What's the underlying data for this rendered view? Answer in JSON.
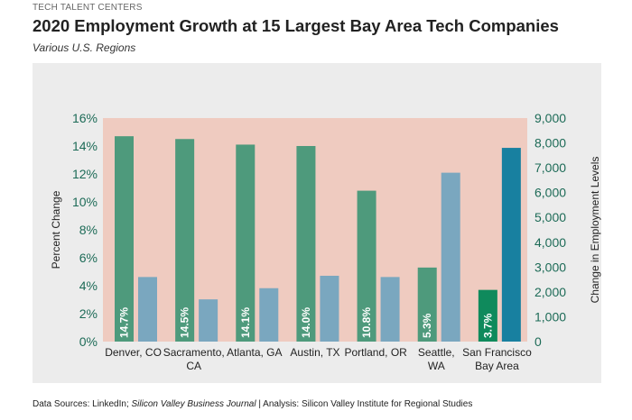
{
  "header": {
    "supertitle": "TECH TALENT CENTERS",
    "title": "2020 Employment Growth at 15 Largest Bay Area Tech Companies",
    "subtitle": "Various U.S. Regions"
  },
  "footer": {
    "prefix": "Data Sources: LinkedIn; ",
    "journal": "Silicon Valley Business Journal",
    "suffix": " | Analysis: Silicon Valley Institute for Regional Studies"
  },
  "colors": {
    "plot_bg": "#efcbc0",
    "panel_bg": "#ececec",
    "percent_bar": "#4e9a7c",
    "count_bar": "#7aa7bf",
    "sf_percent_bar": "#0f8a5c",
    "sf_count_bar": "#1880a0",
    "axis_text": "#1d6b57"
  },
  "chart_data": {
    "type": "bar",
    "title": "2020 Employment Growth at 15 Largest Bay Area Tech Companies",
    "subtitle": "Various U.S. Regions",
    "categories": [
      [
        "Denver, CO"
      ],
      [
        "Sacramento,",
        "CA"
      ],
      [
        "Atlanta, GA"
      ],
      [
        "Austin, TX"
      ],
      [
        "Portland, OR"
      ],
      [
        "Seattle,",
        "WA"
      ],
      [
        "San Francisco",
        "Bay Area"
      ]
    ],
    "series": [
      {
        "name": "Percent Change",
        "axis": "left",
        "values": [
          14.7,
          14.5,
          14.1,
          14.0,
          10.8,
          5.3,
          3.7
        ],
        "labels": [
          "14.7%",
          "14.5%",
          "14.1%",
          "14.0%",
          "10.8%",
          "5.3%",
          "3.7%"
        ]
      },
      {
        "name": "Change in Employment Levels",
        "axis": "right",
        "values": [
          2600,
          1700,
          2150,
          2650,
          2600,
          6800,
          7800
        ]
      }
    ],
    "ylabel": "Percent Change",
    "ylim": [
      0,
      16
    ],
    "yticks": [
      "0%",
      "2%",
      "4%",
      "6%",
      "8%",
      "10%",
      "12%",
      "14%",
      "16%"
    ],
    "y2label": "Change in Employment Levels",
    "y2lim": [
      0,
      9000
    ],
    "y2ticks": [
      "0",
      "1,000",
      "2,000",
      "3,000",
      "4,000",
      "5,000",
      "6,000",
      "7,000",
      "8,000",
      "9,000"
    ],
    "grid": false,
    "legend": "none"
  }
}
